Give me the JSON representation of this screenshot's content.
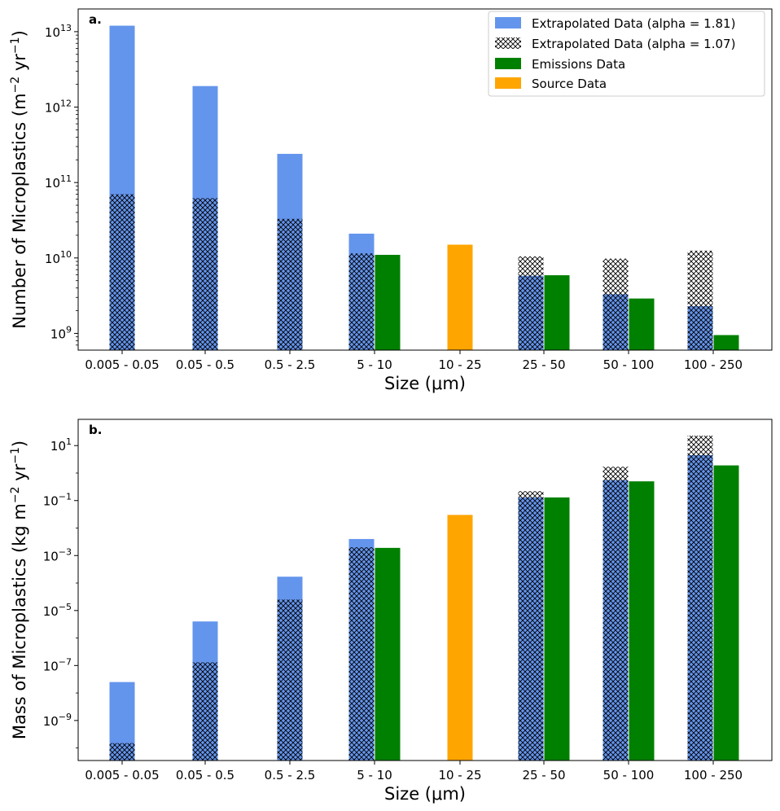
{
  "chart_data": [
    {
      "type": "bar",
      "panel_label": "a.",
      "scale": "log",
      "categories": [
        "0.005 - 0.05",
        "0.05 - 0.5",
        "0.5 - 2.5",
        "5 - 10",
        "10 - 25",
        "25 - 50",
        "50 - 100",
        "100 - 250"
      ],
      "xlabel": "Size (μm)",
      "ylabel_main": "Number of Microplastics (m",
      "ylabel_unit_tail": " yr",
      "ylabel_exp1": "−2",
      "ylabel_exp2": "−1",
      "ylim": [
        600000000.0,
        20000000000000.0
      ],
      "yticks": [
        {
          "value": 1000000000.0,
          "base": "10",
          "exp": "9"
        },
        {
          "value": 10000000000.0,
          "base": "10",
          "exp": "10"
        },
        {
          "value": 100000000000.0,
          "base": "10",
          "exp": "11"
        },
        {
          "value": 1000000000000.0,
          "base": "10",
          "exp": "12"
        },
        {
          "value": 10000000000000.0,
          "base": "10",
          "exp": "13"
        }
      ],
      "series": [
        {
          "name": "Extrapolated Data (alpha = 1.81)",
          "key": "alpha181",
          "values": [
            12000000000000.0,
            1900000000000.0,
            240000000000.0,
            21000000000.0,
            null,
            5800000000.0,
            3300000000.0,
            2300000000.0
          ]
        },
        {
          "name": "Extrapolated Data (alpha = 1.07)",
          "key": "alpha107",
          "values": [
            70000000000.0,
            62000000000.0,
            33000000000.0,
            11500000000.0,
            null,
            10500000000.0,
            9800000000.0,
            12500000000.0
          ]
        },
        {
          "name": "Emissions Data",
          "key": "emissions",
          "values": [
            null,
            null,
            null,
            11000000000.0,
            null,
            5900000000.0,
            2900000000.0,
            950000000.0
          ]
        },
        {
          "name": "Source Data",
          "key": "source",
          "values": [
            null,
            null,
            null,
            null,
            15000000000.0,
            null,
            null,
            null
          ]
        }
      ],
      "legend": "top-right"
    },
    {
      "type": "bar",
      "panel_label": "b.",
      "scale": "log",
      "categories": [
        "0.005 - 0.05",
        "0.05 - 0.5",
        "0.5 - 2.5",
        "5 - 10",
        "10 - 25",
        "25 - 50",
        "50 - 100",
        "100 - 250"
      ],
      "xlabel": "Size (μm)",
      "ylabel_main": "Mass of Microplastics (kg m",
      "ylabel_unit_tail": " yr",
      "ylabel_exp1": "−2",
      "ylabel_exp2": "−1",
      "ylim": [
        3.5e-11,
        90
      ],
      "yticks": [
        {
          "value": 1e-09,
          "base": "10",
          "exp": "−9"
        },
        {
          "value": 1e-07,
          "base": "10",
          "exp": "−7"
        },
        {
          "value": 1e-05,
          "base": "10",
          "exp": "−5"
        },
        {
          "value": 0.001,
          "base": "10",
          "exp": "−3"
        },
        {
          "value": 0.1,
          "base": "10",
          "exp": "−1"
        },
        {
          "value": 10,
          "base": "10",
          "exp": "1"
        }
      ],
      "series": [
        {
          "name": "Extrapolated Data (alpha = 1.81)",
          "key": "alpha181",
          "values": [
            2.5e-08,
            4e-06,
            0.00017,
            0.004,
            null,
            0.13,
            0.55,
            4.5
          ]
        },
        {
          "name": "Extrapolated Data (alpha = 1.07)",
          "key": "alpha107",
          "values": [
            1.5e-10,
            1.3e-07,
            2.5e-05,
            0.002,
            null,
            0.22,
            1.7,
            23
          ]
        },
        {
          "name": "Emissions Data",
          "key": "emissions",
          "values": [
            null,
            null,
            null,
            0.0019,
            null,
            0.13,
            0.5,
            1.9
          ]
        },
        {
          "name": "Source Data",
          "key": "source",
          "values": [
            null,
            null,
            null,
            null,
            0.03,
            null,
            null,
            null
          ]
        }
      ],
      "legend": "none"
    }
  ],
  "colors": {
    "alpha181": "#6495ed",
    "alpha107_hatch": "#000000",
    "emissions": "#008000",
    "source": "#ffa500",
    "axis": "#000000"
  }
}
